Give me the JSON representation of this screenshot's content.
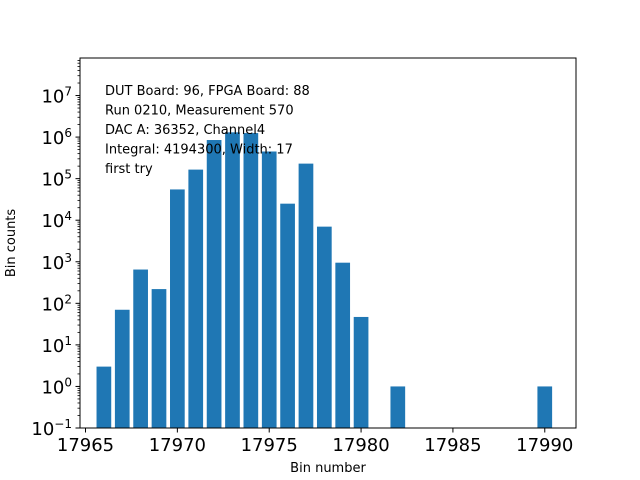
{
  "chart_data": {
    "type": "bar",
    "title": "",
    "xlabel": "Bin number",
    "ylabel": "Bin counts",
    "xlim": [
      17964.7,
      17991.7
    ],
    "ylim": [
      0.1,
      80000000
    ],
    "x_ticks": [
      17965,
      17970,
      17975,
      17980,
      17985,
      17990
    ],
    "y_ticks": [
      {
        "base": "10",
        "exp": "−1",
        "value": 0.1
      },
      {
        "base": "10",
        "exp": "0",
        "value": 1
      },
      {
        "base": "10",
        "exp": "1",
        "value": 10
      },
      {
        "base": "10",
        "exp": "2",
        "value": 100
      },
      {
        "base": "10",
        "exp": "3",
        "value": 1000
      },
      {
        "base": "10",
        "exp": "4",
        "value": 10000
      },
      {
        "base": "10",
        "exp": "5",
        "value": 100000
      },
      {
        "base": "10",
        "exp": "6",
        "value": 1000000
      },
      {
        "base": "10",
        "exp": "7",
        "value": 10000000
      }
    ],
    "y_scale": "log",
    "grid": false,
    "bar_color": "#1f77b4",
    "x": [
      17966,
      17967,
      17968,
      17969,
      17970,
      17971,
      17972,
      17973,
      17974,
      17975,
      17976,
      17977,
      17978,
      17979,
      17980,
      17982,
      17990
    ],
    "values": [
      3,
      70,
      650,
      220,
      55000,
      165000,
      850000,
      1300000,
      1250000,
      450000,
      25000,
      230000,
      7000,
      950,
      47,
      1,
      1
    ],
    "annotations": [
      "DUT Board: 96, FPGA Board: 88",
      "Run 0210, Measurement 570",
      "DAC A: 36352, Channel4",
      "Integral: 4194300, Width: 17",
      "first try"
    ]
  }
}
